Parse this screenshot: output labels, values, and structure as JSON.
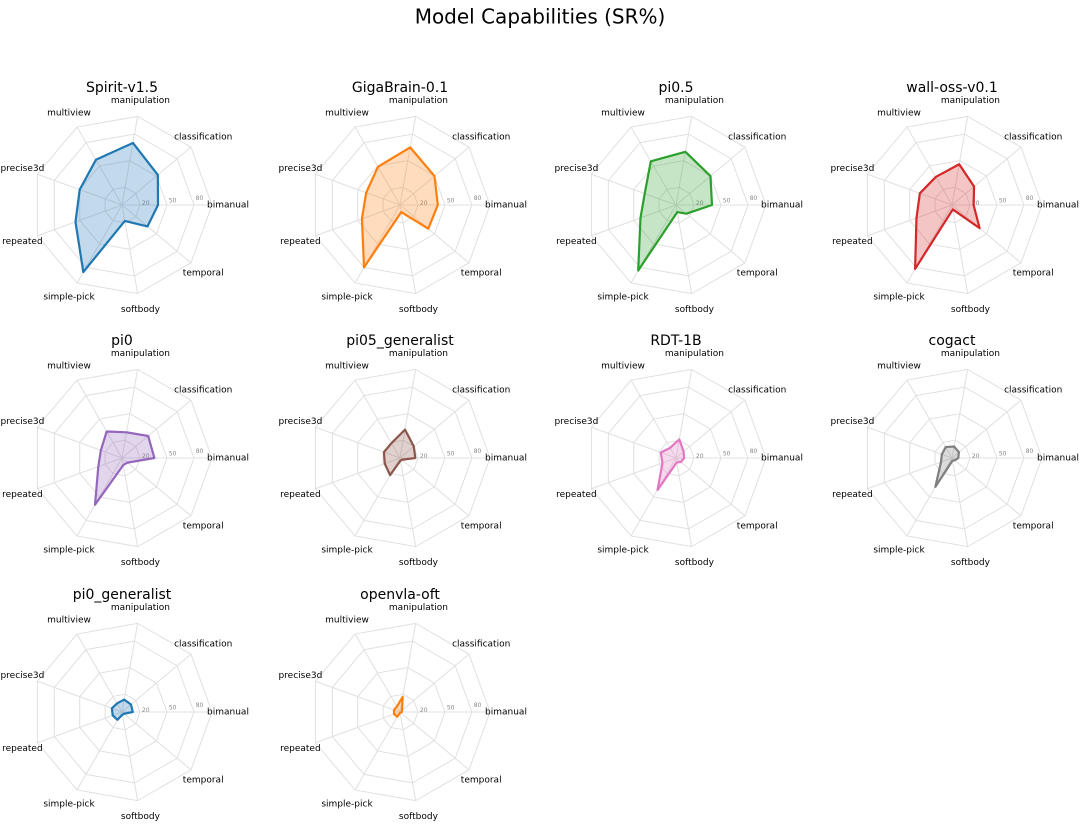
{
  "title": "Model Capabilities (SR%)",
  "chart_data": [
    {
      "type": "radar",
      "title": "Spirit-v1.5",
      "color": "#1f77b4",
      "categories": [
        "bimanual",
        "classification",
        "manipulation",
        "multiview",
        "precise3d",
        "repeated",
        "simple-pick",
        "softbody",
        "temporal"
      ],
      "values": [
        40,
        52,
        70,
        58,
        50,
        55,
        86,
        18,
        37
      ],
      "ylim": [
        0,
        100
      ],
      "rticks": [
        20,
        50,
        80
      ]
    },
    {
      "type": "radar",
      "title": "GigaBrain-0.1",
      "color": "#ff7f0e",
      "categories": [
        "bimanual",
        "classification",
        "manipulation",
        "multiview",
        "precise3d",
        "repeated",
        "simple-pick",
        "softbody",
        "temporal"
      ],
      "values": [
        42,
        50,
        65,
        49,
        40,
        45,
        80,
        8,
        41
      ],
      "ylim": [
        0,
        100
      ],
      "rticks": [
        20,
        50,
        80
      ]
    },
    {
      "type": "radar",
      "title": "pi0.5",
      "color": "#2ca02c",
      "categories": [
        "bimanual",
        "classification",
        "manipulation",
        "multiview",
        "precise3d",
        "repeated",
        "simple-pick",
        "softbody",
        "temporal"
      ],
      "values": [
        40,
        50,
        60,
        56,
        37,
        42,
        84,
        8,
        15
      ],
      "ylim": [
        0,
        100
      ],
      "rticks": [
        20,
        50,
        80
      ]
    },
    {
      "type": "radar",
      "title": "wall-oss-v0.1",
      "color": "#d62728",
      "categories": [
        "bimanual",
        "classification",
        "manipulation",
        "multiview",
        "precise3d",
        "repeated",
        "simple-pick",
        "softbody",
        "temporal"
      ],
      "values": [
        24,
        32,
        46,
        36,
        38,
        42,
        82,
        5,
        40
      ],
      "ylim": [
        0,
        100
      ],
      "rticks": [
        20,
        50,
        80
      ]
    },
    {
      "type": "radar",
      "title": "pi0",
      "color": "#9467bd",
      "categories": [
        "bimanual",
        "classification",
        "manipulation",
        "multiview",
        "precise3d",
        "repeated",
        "simple-pick",
        "softbody",
        "temporal"
      ],
      "values": [
        36,
        38,
        29,
        34,
        25,
        28,
        60,
        8,
        8
      ],
      "ylim": [
        0,
        100
      ],
      "rticks": [
        20,
        50,
        80
      ]
    },
    {
      "type": "radar",
      "title": "pi05_generalist",
      "color": "#8c564b",
      "categories": [
        "bimanual",
        "classification",
        "manipulation",
        "multiview",
        "precise3d",
        "repeated",
        "simple-pick",
        "softbody",
        "temporal"
      ],
      "values": [
        17,
        20,
        32,
        19,
        19,
        18,
        22,
        3,
        3
      ],
      "ylim": [
        0,
        100
      ],
      "rticks": [
        20,
        50,
        80
      ]
    },
    {
      "type": "radar",
      "title": "RDT-1B",
      "color": "#e377c2",
      "categories": [
        "bimanual",
        "classification",
        "manipulation",
        "multiview",
        "precise3d",
        "repeated",
        "simple-pick",
        "softbody",
        "temporal"
      ],
      "values": [
        9,
        11,
        21,
        13,
        18,
        16,
        41,
        5,
        7
      ],
      "ylim": [
        0,
        100
      ],
      "rticks": [
        20,
        50,
        80
      ]
    },
    {
      "type": "radar",
      "title": "cogact",
      "color": "#7f7f7f",
      "categories": [
        "bimanual",
        "classification",
        "manipulation",
        "multiview",
        "precise3d",
        "repeated",
        "simple-pick",
        "softbody",
        "temporal"
      ],
      "values": [
        7,
        10,
        13,
        14,
        12,
        13,
        37,
        3,
        4
      ],
      "ylim": [
        0,
        100
      ],
      "rticks": [
        20,
        50,
        80
      ]
    },
    {
      "type": "radar",
      "title": "pi0_generalist",
      "color": "#1f77b4",
      "categories": [
        "bimanual",
        "classification",
        "manipulation",
        "multiview",
        "precise3d",
        "repeated",
        "simple-pick",
        "softbody",
        "temporal"
      ],
      "values": [
        12,
        13,
        14,
        11,
        12,
        11,
        10,
        3,
        3
      ],
      "ylim": [
        0,
        100
      ],
      "rticks": [
        20,
        50,
        80
      ]
    },
    {
      "type": "radar",
      "title": "openvla-oft",
      "color": "#ff7f0e",
      "categories": [
        "bimanual",
        "classification",
        "manipulation",
        "multiview",
        "precise3d",
        "repeated",
        "simple-pick",
        "softbody",
        "temporal"
      ],
      "values": [
        2,
        3,
        17,
        7,
        7,
        7,
        6,
        1,
        1
      ],
      "ylim": [
        0,
        100
      ],
      "rticks": [
        20,
        50,
        80
      ]
    }
  ]
}
